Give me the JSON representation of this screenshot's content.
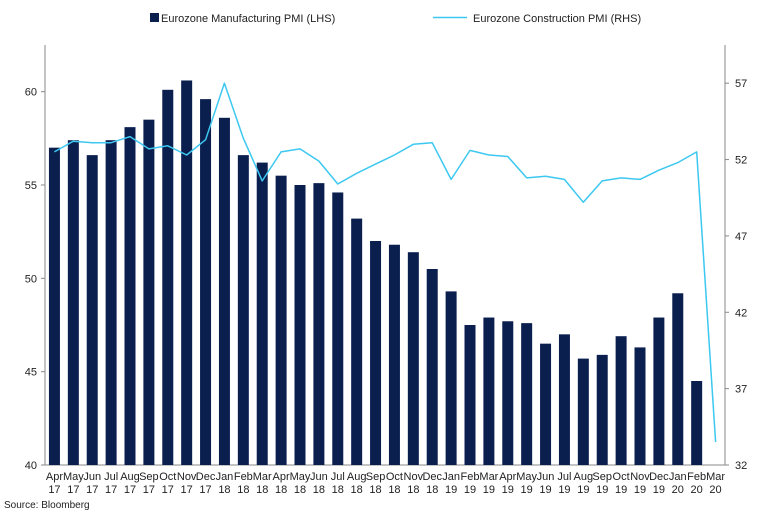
{
  "chart_data": {
    "type": "bar+line",
    "categories": [
      [
        "Apr",
        "17"
      ],
      [
        "May",
        "17"
      ],
      [
        "Jun",
        "17"
      ],
      [
        "Jul",
        "17"
      ],
      [
        "Aug",
        "17"
      ],
      [
        "Sep",
        "17"
      ],
      [
        "Oct",
        "17"
      ],
      [
        "Nov",
        "17"
      ],
      [
        "Dec",
        "17"
      ],
      [
        "Jan",
        "18"
      ],
      [
        "Feb",
        "18"
      ],
      [
        "Mar",
        "18"
      ],
      [
        "Apr",
        "18"
      ],
      [
        "May",
        "18"
      ],
      [
        "Jun",
        "18"
      ],
      [
        "Jul",
        "18"
      ],
      [
        "Aug",
        "18"
      ],
      [
        "Sep",
        "18"
      ],
      [
        "Oct",
        "18"
      ],
      [
        "Nov",
        "18"
      ],
      [
        "Dec",
        "18"
      ],
      [
        "Jan",
        "19"
      ],
      [
        "Feb",
        "19"
      ],
      [
        "Mar",
        "19"
      ],
      [
        "Apr",
        "19"
      ],
      [
        "May",
        "19"
      ],
      [
        "Jun",
        "19"
      ],
      [
        "Jul",
        "19"
      ],
      [
        "Aug",
        "19"
      ],
      [
        "Sep",
        "19"
      ],
      [
        "Oct",
        "19"
      ],
      [
        "Nov",
        "19"
      ],
      [
        "Dec",
        "19"
      ],
      [
        "Jan",
        "20"
      ],
      [
        "Feb",
        "20"
      ],
      [
        "Mar",
        "20"
      ]
    ],
    "series": [
      {
        "name": "Eurozone Manufacturing PMI (LHS)",
        "kind": "bar",
        "axis": "left",
        "color": "#0b1f4f",
        "values": [
          57.0,
          57.4,
          56.6,
          57.4,
          58.1,
          58.5,
          60.1,
          60.6,
          59.6,
          58.6,
          56.6,
          56.2,
          55.5,
          55.0,
          55.1,
          54.6,
          53.2,
          52.0,
          51.8,
          51.4,
          50.5,
          49.3,
          47.5,
          47.9,
          47.7,
          47.6,
          46.5,
          47.0,
          45.7,
          45.9,
          46.9,
          46.3,
          47.9,
          49.2,
          44.5,
          null
        ]
      },
      {
        "name": "Eurozone Construction PMI (RHS)",
        "kind": "line",
        "axis": "right",
        "color": "#3cc8f0",
        "values": [
          52.5,
          53.2,
          53.1,
          53.1,
          53.5,
          52.7,
          52.9,
          52.3,
          53.3,
          57.0,
          53.4,
          50.6,
          52.5,
          52.7,
          51.9,
          50.4,
          51.1,
          51.7,
          52.3,
          53.0,
          53.1,
          50.7,
          52.6,
          52.3,
          52.2,
          50.8,
          50.9,
          50.7,
          49.2,
          50.6,
          50.8,
          50.7,
          51.3,
          51.8,
          52.5,
          33.5
        ]
      }
    ],
    "y_left": {
      "range": [
        40,
        62.5
      ],
      "ticks": [
        40,
        45,
        50,
        55,
        60
      ]
    },
    "y_right": {
      "range": [
        32,
        59.5
      ],
      "ticks": [
        32,
        37,
        42,
        47,
        52,
        57
      ]
    },
    "legend_position": "top",
    "grid": false
  },
  "source": "Source: Bloomberg"
}
